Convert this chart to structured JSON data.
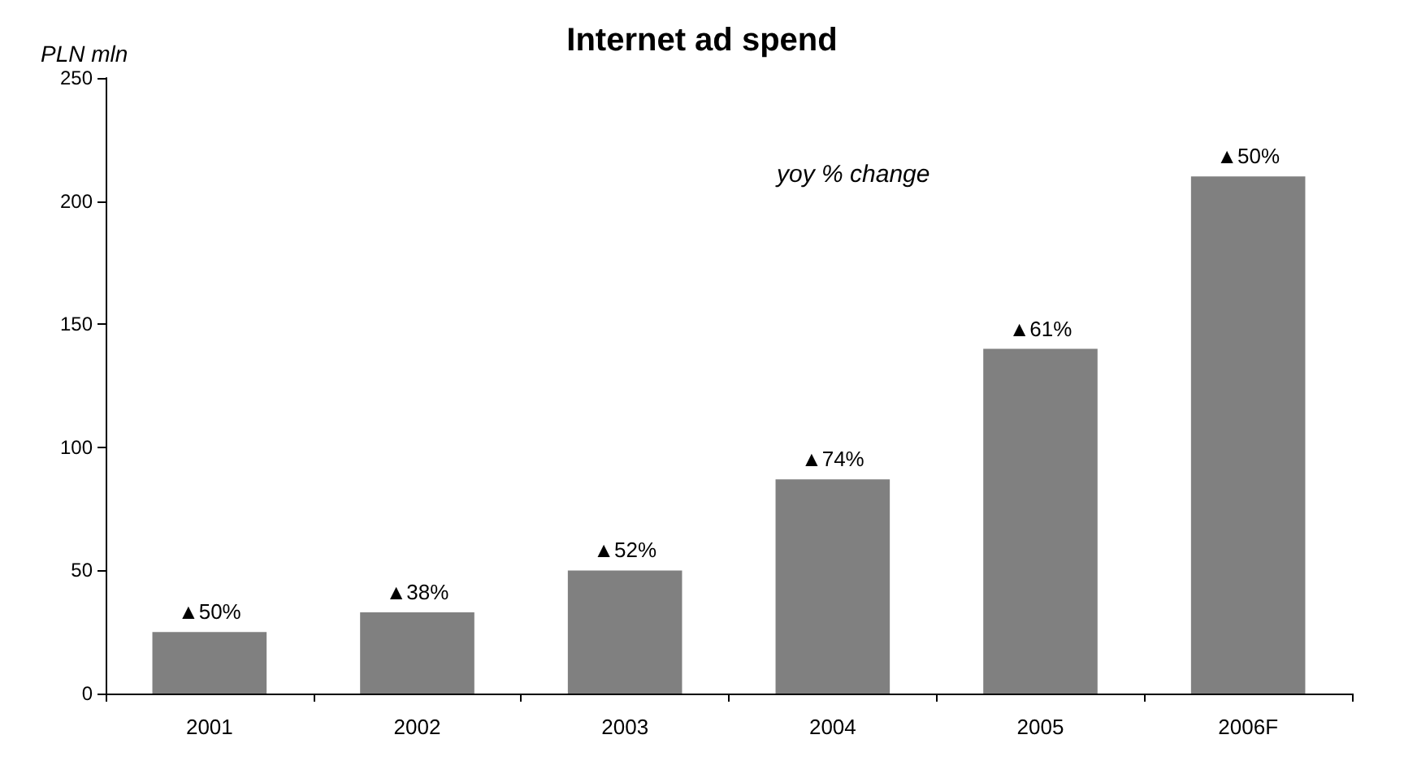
{
  "chart_data": {
    "type": "bar",
    "title": "Internet ad spend",
    "ylabel": "PLN mln",
    "annotations": [
      "yoy % change",
      {
        "text": "▲50%",
        "x": "2001",
        "y": 25
      },
      {
        "text": "▲38%",
        "x": "2002",
        "y": 33
      },
      {
        "text": "▲52%",
        "x": "2003",
        "y": 50
      },
      {
        "text": "▲74%",
        "x": "2004",
        "y": 87
      },
      {
        "text": "▲61%",
        "x": "2005",
        "y": 140
      },
      {
        "text": "▲50%",
        "x": "2006F",
        "y": 210
      }
    ],
    "categories": [
      "2001",
      "2002",
      "2003",
      "2004",
      "2005",
      "2006F"
    ],
    "values": [
      25,
      33,
      50,
      87,
      140,
      210
    ],
    "color": "#808080",
    "ylim": [
      0,
      250
    ],
    "yticks": [
      0,
      50,
      100,
      150,
      200,
      250
    ],
    "grid": false
  }
}
